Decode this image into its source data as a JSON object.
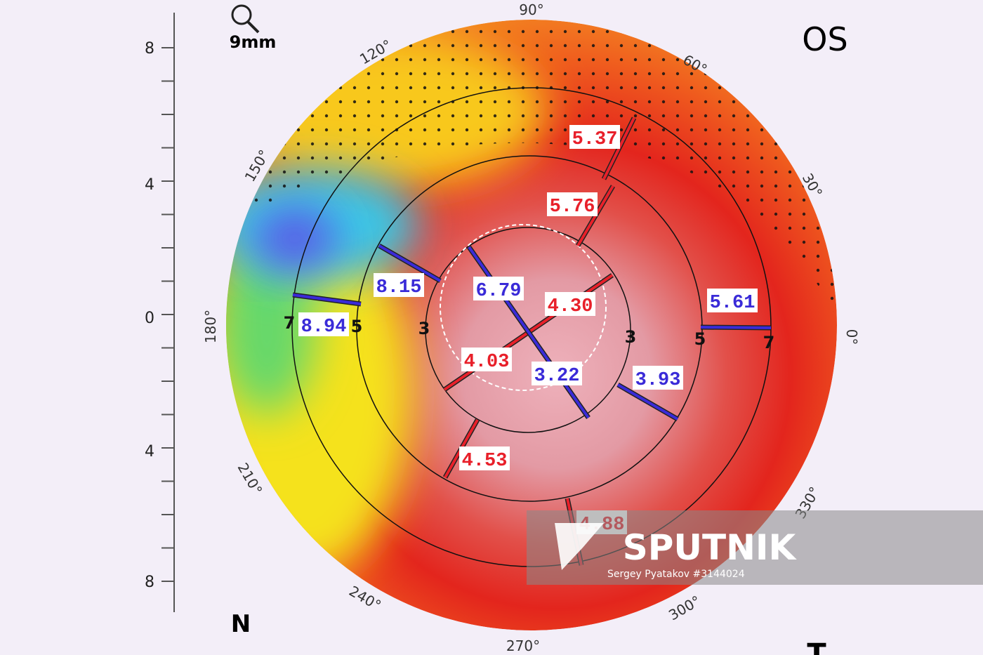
{
  "header": {
    "zoom": "9mm",
    "eye": "OS"
  },
  "scale": {
    "ticks": [
      "8",
      "4",
      "0",
      "4",
      "8"
    ]
  },
  "orientation": {
    "nasal": "N",
    "temporal": "T"
  },
  "angles": [
    "90°",
    "60°",
    "30°",
    "0°",
    "330°",
    "300°",
    "270°",
    "240°",
    "210°",
    "180°",
    "150°",
    "120°"
  ],
  "rings": [
    "7",
    "5",
    "3",
    "3",
    "5",
    "7"
  ],
  "measurements": [
    {
      "value": "5.37",
      "color": "#e8202a"
    },
    {
      "value": "5.76",
      "color": "#e8202a"
    },
    {
      "value": "4.30",
      "color": "#e8202a"
    },
    {
      "value": "6.79",
      "color": "#3a2bd8"
    },
    {
      "value": "8.15",
      "color": "#3a2bd8"
    },
    {
      "value": "8.94",
      "color": "#3a2bd8"
    },
    {
      "value": "5.61",
      "color": "#3a2bd8"
    },
    {
      "value": "3.93",
      "color": "#3a2bd8"
    },
    {
      "value": "3.22",
      "color": "#3a2bd8"
    },
    {
      "value": "4.03",
      "color": "#e8202a"
    },
    {
      "value": "4.53",
      "color": "#e8202a"
    },
    {
      "value": "4.88",
      "color": "#e8202a"
    }
  ],
  "watermark": {
    "brand": "SPUTNIK",
    "credit": "Sergey Pyatakov #3144024"
  }
}
